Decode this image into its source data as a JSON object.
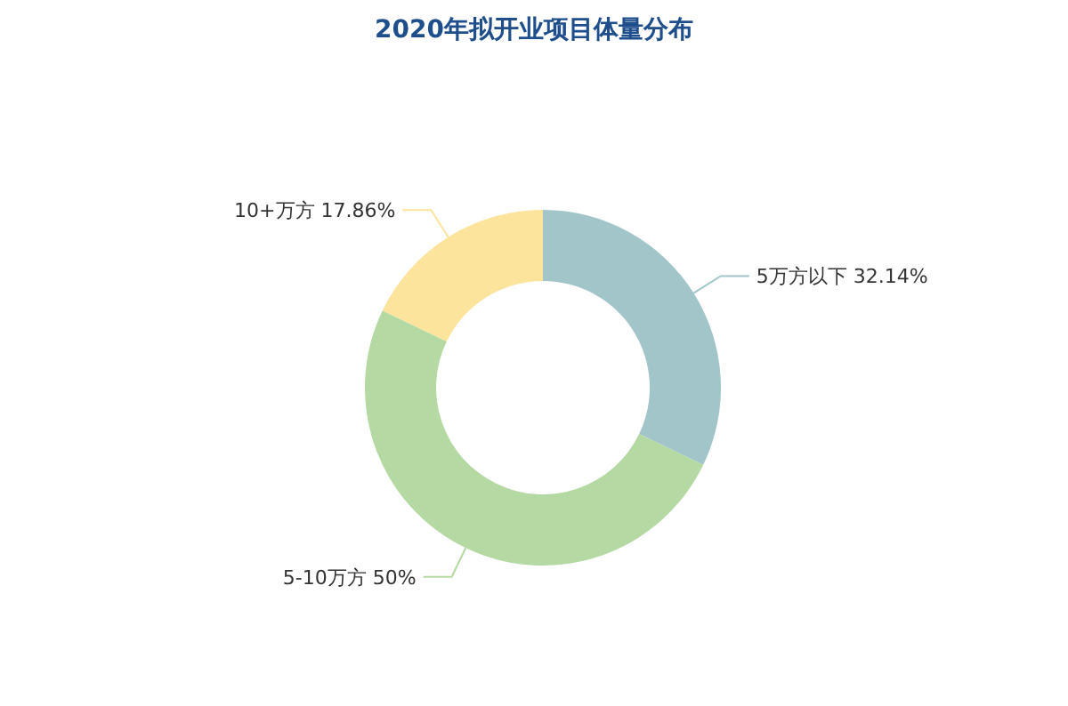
{
  "chart_data": {
    "type": "donut",
    "title": "2020年拟开业项目体量分布",
    "categories": [
      "5万方以下",
      "5-10万方",
      "10+万方"
    ],
    "values": [
      32.14,
      50,
      17.86
    ],
    "value_labels": [
      "32.14%",
      "50%",
      "17.86%"
    ],
    "colors": [
      "#a2c5c9",
      "#b5d9a3",
      "#fde49c"
    ]
  }
}
